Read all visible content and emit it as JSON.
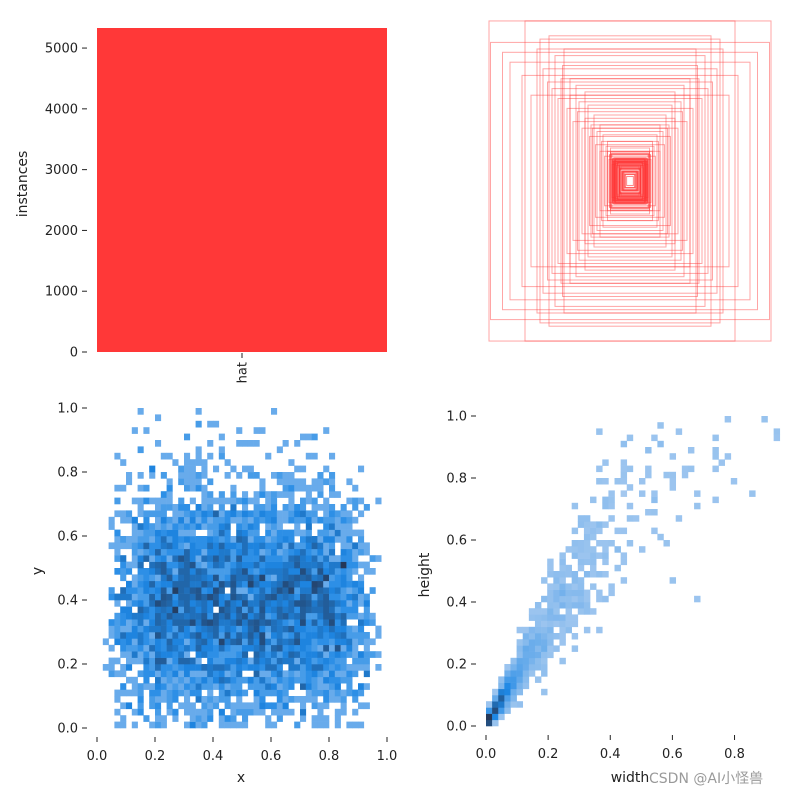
{
  "watermark": "CSDN @AI小怪兽",
  "chart_data": [
    {
      "id": "class-instances",
      "type": "bar",
      "categories": [
        "hat"
      ],
      "values": [
        5330
      ],
      "ylabel": "instances",
      "xlabel": "",
      "ylim": [
        0,
        5330
      ],
      "yticks": [
        0,
        1000,
        2000,
        3000,
        4000,
        5000
      ],
      "ytick_labels": [
        "0",
        "1000",
        "2000",
        "3000",
        "4000",
        "5000"
      ],
      "color": "#ff3838",
      "grid": false
    },
    {
      "id": "box-overlay",
      "type": "other",
      "description_free": true,
      "color": "#ff3838",
      "boxes_wh": [
        [
          0.94,
          0.97
        ],
        [
          0.7,
          0.97
        ],
        [
          0.93,
          0.84
        ],
        [
          0.54,
          0.88
        ],
        [
          0.62,
          0.8
        ],
        [
          0.8,
          0.72
        ],
        [
          0.6,
          0.86
        ],
        [
          0.5,
          0.76
        ],
        [
          0.72,
          0.64
        ],
        [
          0.45,
          0.7
        ],
        [
          0.55,
          0.6
        ],
        [
          0.4,
          0.62
        ],
        [
          0.66,
          0.52
        ],
        [
          0.36,
          0.58
        ],
        [
          0.48,
          0.5
        ],
        [
          0.3,
          0.54
        ],
        [
          0.42,
          0.44
        ],
        [
          0.28,
          0.46
        ],
        [
          0.38,
          0.36
        ],
        [
          0.24,
          0.4
        ],
        [
          0.32,
          0.32
        ],
        [
          0.2,
          0.34
        ],
        [
          0.27,
          0.27
        ],
        [
          0.18,
          0.28
        ],
        [
          0.23,
          0.22
        ],
        [
          0.15,
          0.24
        ],
        [
          0.2,
          0.18
        ],
        [
          0.13,
          0.2
        ],
        [
          0.17,
          0.15
        ],
        [
          0.12,
          0.16
        ],
        [
          0.14,
          0.13
        ],
        [
          0.1,
          0.13
        ],
        [
          0.12,
          0.1
        ],
        [
          0.08,
          0.11
        ],
        [
          0.09,
          0.08
        ],
        [
          0.06,
          0.09
        ],
        [
          0.05,
          0.06
        ],
        [
          0.03,
          0.04
        ],
        [
          0.58,
          0.68
        ],
        [
          0.44,
          0.8
        ],
        [
          0.34,
          0.48
        ],
        [
          0.26,
          0.34
        ],
        [
          0.22,
          0.3
        ],
        [
          0.19,
          0.24
        ],
        [
          0.16,
          0.21
        ],
        [
          0.15,
          0.18
        ],
        [
          0.11,
          0.14
        ],
        [
          0.85,
          0.78
        ],
        [
          0.52,
          0.56
        ],
        [
          0.46,
          0.62
        ],
        [
          0.4,
          0.52
        ],
        [
          0.35,
          0.42
        ],
        [
          0.3,
          0.38
        ],
        [
          0.25,
          0.32
        ]
      ]
    },
    {
      "id": "xy-histogram",
      "type": "heatmap",
      "xlabel": "x",
      "ylabel": "y",
      "xlim": [
        0,
        1
      ],
      "ylim": [
        0,
        1
      ],
      "xticks": [
        0.0,
        0.2,
        0.4,
        0.6,
        0.8,
        1.0
      ],
      "xtick_labels": [
        "0.0",
        "0.2",
        "0.4",
        "0.6",
        "0.8",
        "1.0"
      ],
      "yticks": [
        0.0,
        0.2,
        0.4,
        0.6,
        0.8,
        1.0
      ],
      "ytick_labels": [
        "0.0",
        "0.2",
        "0.4",
        "0.6",
        "0.8",
        "1.0"
      ],
      "bins": 50,
      "color": "#1f77b4",
      "x_mean": 0.5,
      "x_spread": 0.3,
      "y_mean": 0.38,
      "y_spread": 0.17,
      "grid": false
    },
    {
      "id": "wh-histogram",
      "type": "heatmap",
      "xlabel": "width",
      "ylabel": "height",
      "xlim": [
        0,
        1
      ],
      "ylim": [
        0,
        1
      ],
      "xticks": [
        0.0,
        0.2,
        0.4,
        0.6,
        0.8
      ],
      "xtick_labels": [
        "0.0",
        "0.2",
        "0.4",
        "0.6",
        "0.8"
      ],
      "yticks": [
        0.0,
        0.2,
        0.4,
        0.6,
        0.8,
        1.0
      ],
      "ytick_labels": [
        "0.0",
        "0.2",
        "0.4",
        "0.6",
        "0.8",
        "1.0"
      ],
      "bins": 50,
      "color": "#1f77b4",
      "height_width_ratio": 1.6,
      "grid": false
    }
  ]
}
